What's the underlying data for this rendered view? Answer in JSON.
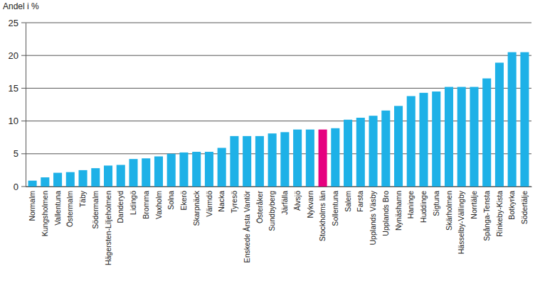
{
  "chart_data": {
    "type": "bar",
    "y_label": "Andel i %",
    "categories": [
      "Normalm",
      "Kungsholmen",
      "Vallentuna",
      "Östermalm",
      "Täby",
      "Södermalm",
      "Hägersten-Liljeholmen",
      "Danderyd",
      "Lidingö",
      "Bromma",
      "Vaxholm",
      "Solna",
      "Ekerö",
      "Skarpnäck",
      "Värmdö",
      "Nacka",
      "Tyresö",
      "Enskede Årsta Vantör",
      "Österåker",
      "Sundbyberg",
      "Järfälla",
      "Älvsjö",
      "Nykvarn",
      "Stockholms län",
      "Sollentuna",
      "Salem",
      "Farsta",
      "Upplands Väsby",
      "Upplands Bro",
      "Nynäshamn",
      "Haninge",
      "Huddinge",
      "Sigtuna",
      "Skärholmen",
      "Hässelby-Vällingby",
      "Norrtälje",
      "Spånga-Tensta",
      "Rinkeby-Kista",
      "Botkyrka",
      "Södertälje"
    ],
    "values": [
      0.9,
      1.4,
      2.1,
      2.2,
      2.5,
      2.8,
      3.2,
      3.3,
      4.2,
      4.3,
      4.6,
      5.0,
      5.2,
      5.3,
      5.3,
      5.9,
      7.7,
      7.7,
      7.7,
      8.1,
      8.3,
      8.7,
      8.7,
      8.7,
      8.9,
      10.2,
      10.5,
      10.8,
      11.6,
      12.3,
      13.8,
      14.3,
      14.5,
      15.2,
      15.2,
      15.2,
      16.5,
      18.9,
      20.5,
      20.5
    ],
    "colors": [
      "#1eb1e7",
      "#1eb1e7",
      "#1eb1e7",
      "#1eb1e7",
      "#1eb1e7",
      "#1eb1e7",
      "#1eb1e7",
      "#1eb1e7",
      "#1eb1e7",
      "#1eb1e7",
      "#1eb1e7",
      "#1eb1e7",
      "#1eb1e7",
      "#1eb1e7",
      "#1eb1e7",
      "#1eb1e7",
      "#1eb1e7",
      "#1eb1e7",
      "#1eb1e7",
      "#1eb1e7",
      "#1eb1e7",
      "#1eb1e7",
      "#1eb1e7",
      "#e6007e",
      "#1eb1e7",
      "#1eb1e7",
      "#1eb1e7",
      "#1eb1e7",
      "#1eb1e7",
      "#1eb1e7",
      "#1eb1e7",
      "#1eb1e7",
      "#1eb1e7",
      "#1eb1e7",
      "#1eb1e7",
      "#1eb1e7",
      "#1eb1e7",
      "#1eb1e7",
      "#1eb1e7",
      "#1eb1e7"
    ],
    "ylim": [
      0,
      25
    ],
    "yticks": [
      0,
      5,
      10,
      15,
      20,
      25
    ],
    "grid": true
  }
}
